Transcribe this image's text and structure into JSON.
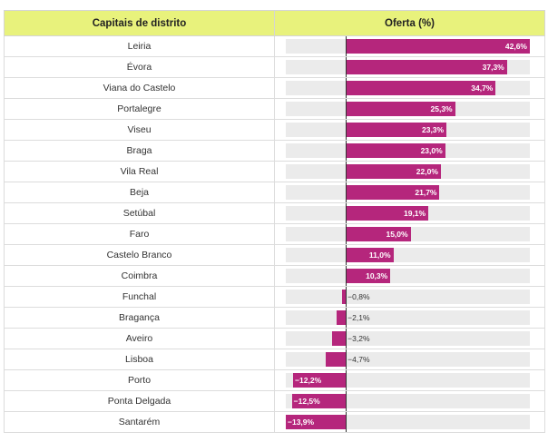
{
  "header": {
    "col1": "Capitais de distrito",
    "col2": "Oferta (%)"
  },
  "chart_data": {
    "type": "bar",
    "orientation": "horizontal",
    "categories": [
      "Leiria",
      "Évora",
      "Viana do Castelo",
      "Portalegre",
      "Viseu",
      "Braga",
      "Vila Real",
      "Beja",
      "Setúbal",
      "Faro",
      "Castelo Branco",
      "Coimbra",
      "Funchal",
      "Bragança",
      "Aveiro",
      "Lisboa",
      "Porto",
      "Ponta Delgada",
      "Santarém"
    ],
    "values": [
      42.6,
      37.3,
      34.7,
      25.3,
      23.3,
      23.0,
      22.0,
      21.7,
      19.1,
      15.0,
      11.0,
      10.3,
      -0.8,
      -2.1,
      -3.2,
      -4.7,
      -12.2,
      -12.5,
      -13.9
    ],
    "value_labels": [
      "42,6%",
      "37,3%",
      "34,7%",
      "25,3%",
      "23,3%",
      "23,0%",
      "22,0%",
      "21,7%",
      "19,1%",
      "15,0%",
      "11,0%",
      "10,3%",
      "−0,8%",
      "−2,1%",
      "−3,2%",
      "−4,7%",
      "−12,2%",
      "−12,5%",
      "−13,9%"
    ],
    "xlim": [
      -13.9,
      42.6
    ],
    "colors": {
      "bar": "#b5267c",
      "track": "#ebebeb",
      "header": "#e8f27c"
    }
  }
}
